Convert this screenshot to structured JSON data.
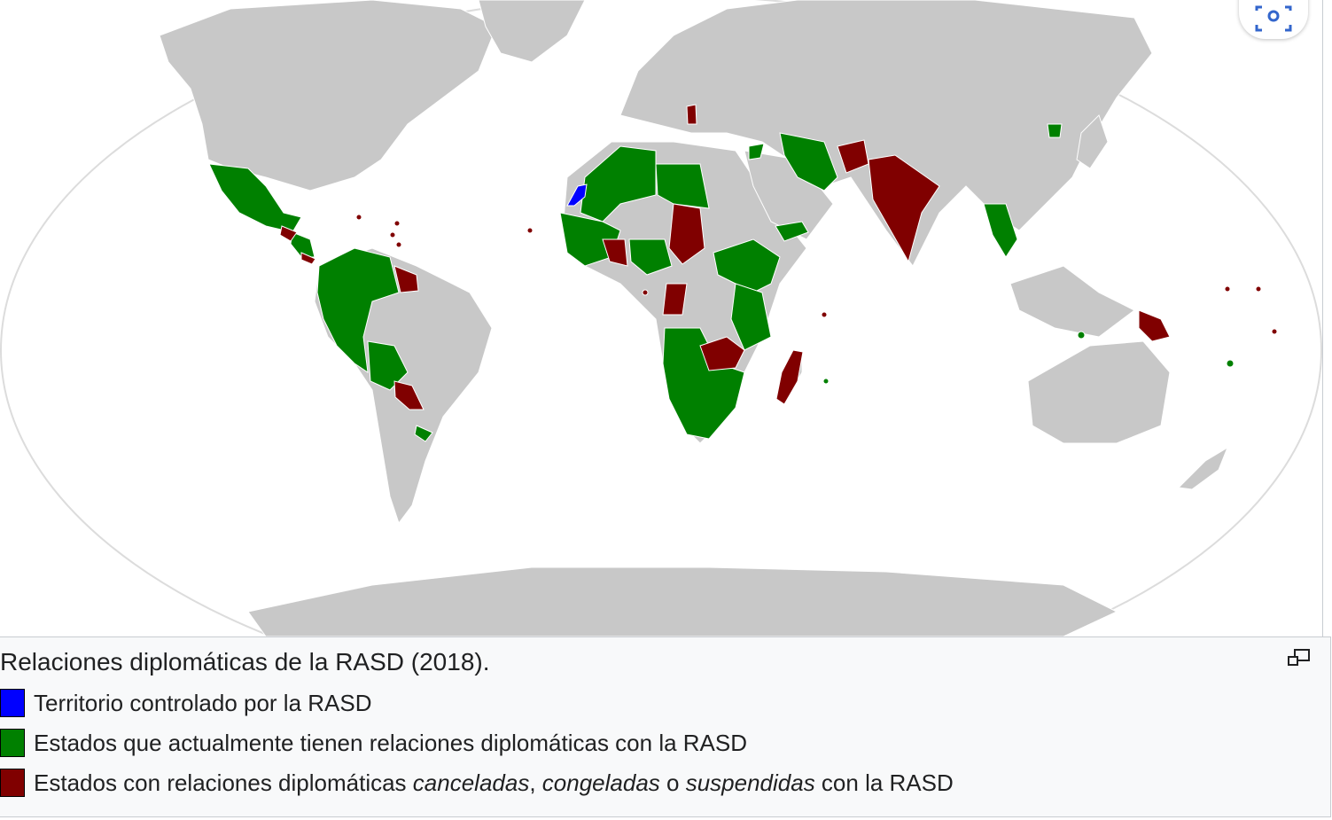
{
  "map": {
    "colors": {
      "ocean": "#ffffff",
      "land": "#c8c8c8",
      "border": "#ffffff",
      "controlled": "#0000ff",
      "active": "#008000",
      "cancelled": "#800000"
    }
  },
  "caption": {
    "title": "Relaciones diplomáticas de la RASD (2018).",
    "legend": [
      {
        "color": "#0000ff",
        "text": "Territorio controlado por la RASD"
      },
      {
        "color": "#008000",
        "text": "Estados que actualmente tienen relaciones diplomáticas con la RASD"
      },
      {
        "color": "#800000",
        "text_before": "Estados con relaciones diplomáticas ",
        "em1": "canceladas",
        "sep1": ", ",
        "em2": "congeladas",
        "sep2": " o ",
        "em3": "suspendidas",
        "text_after": " con la RASD"
      }
    ]
  },
  "icons": {
    "lens": "image-search-icon",
    "expand": "enlarge-icon"
  }
}
